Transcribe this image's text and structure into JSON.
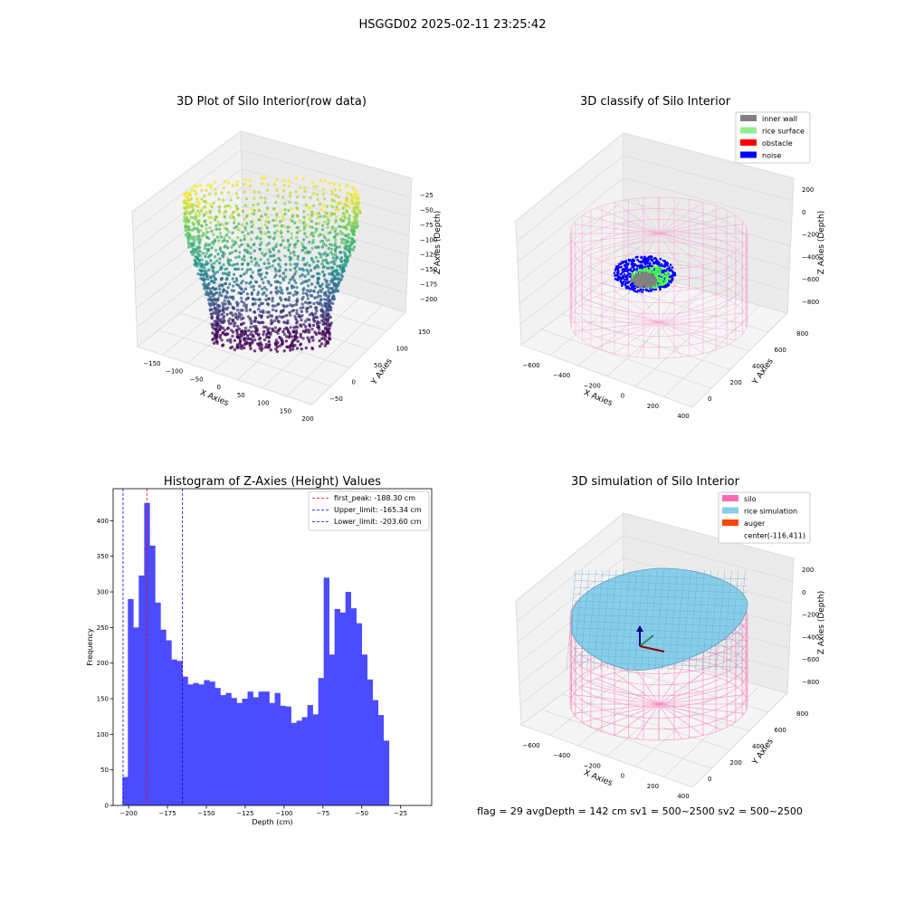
{
  "figure": {
    "suptitle": "HSGGD02 2025-02-11 23:25:42",
    "footer": "flag = 29  avgDepth = 142 cm  sv1 = 500~2500  sv2 = 500~2500"
  },
  "panels": {
    "raw": {
      "title": "3D Plot of Silo Interior(row data)",
      "xlabel": "X Axies",
      "ylabel": "Y Axies",
      "zlabel": "Z Axies (Depth)",
      "xticks": [
        "−150",
        "−100",
        "−50",
        "0",
        "50",
        "100",
        "150",
        "200"
      ],
      "yticks": [
        "−50",
        "0",
        "50",
        "100",
        "150"
      ],
      "zticks": [
        "−25",
        "−50",
        "−75",
        "−100",
        "−125",
        "−150",
        "−175",
        "−200"
      ]
    },
    "classify": {
      "title": "3D classify of Silo Interior",
      "xlabel": "X Axies",
      "ylabel": "Y Axies",
      "zlabel": "Z Axies (Depth)",
      "xticks": [
        "−600",
        "−400",
        "−200",
        "0",
        "200",
        "400"
      ],
      "yticks": [
        "0",
        "200",
        "400",
        "600",
        "800"
      ],
      "zticks": [
        "200",
        "0",
        "−200",
        "−400",
        "−600",
        "−800"
      ],
      "legend": [
        {
          "label": "inner wall",
          "color": "#808080"
        },
        {
          "label": "rice surface",
          "color": "#90ee90"
        },
        {
          "label": "obstacle",
          "color": "#ff0000"
        },
        {
          "label": "noise",
          "color": "#0000ff"
        }
      ]
    },
    "sim": {
      "title": "3D simulation of Silo Interior",
      "xlabel": "X Axies",
      "ylabel": "Y Axies",
      "zlabel": "Z Axies (Depth)",
      "xticks": [
        "−600",
        "−400",
        "−200",
        "0",
        "200",
        "400"
      ],
      "yticks": [
        "0",
        "200",
        "400",
        "600",
        "800"
      ],
      "zticks": [
        "200",
        "0",
        "−200",
        "−400",
        "−600",
        "−800"
      ],
      "legend": [
        {
          "label": "silo",
          "color": "#ff69b4"
        },
        {
          "label": "rice simulation",
          "color": "#87ceeb"
        },
        {
          "label": "auger",
          "color": "#ff4500"
        },
        {
          "label": "center(-116,411)",
          "color": ""
        }
      ]
    }
  },
  "chart_data": {
    "type": "bar",
    "title": "Histogram of Z-Axies (Height) Values",
    "xlabel": "Depth (cm)",
    "ylabel": "Frequency",
    "xlim": [
      -210,
      -5
    ],
    "ylim": [
      0,
      445
    ],
    "bin_start": -204,
    "bin_width": 3.5,
    "values": [
      40,
      290,
      250,
      323,
      425,
      365,
      285,
      247,
      232,
      205,
      203,
      181,
      170,
      172,
      170,
      176,
      174,
      165,
      155,
      158,
      151,
      144,
      150,
      160,
      152,
      160,
      160,
      144,
      158,
      140,
      139,
      116,
      119,
      124,
      141,
      128,
      179,
      320,
      212,
      276,
      271,
      300,
      277,
      256,
      212,
      177,
      148,
      127,
      91
    ],
    "xticks": [
      -200,
      -175,
      -150,
      -125,
      -100,
      -75,
      -50,
      -25
    ],
    "yticks": [
      0,
      50,
      100,
      150,
      200,
      250,
      300,
      350,
      400
    ],
    "bar_color": "#4b4bff",
    "lines": [
      {
        "label": "first_peak: -188.30 cm",
        "value": -188.3,
        "color": "#ff0000"
      },
      {
        "label": "Upper_limit: -165.34 cm",
        "value": -165.34,
        "color": "#0000ff"
      },
      {
        "label": "Lower_limit: -203.60 cm",
        "value": -203.6,
        "color": "#0000ff"
      }
    ],
    "legend_position": "top-right",
    "grid": false
  }
}
